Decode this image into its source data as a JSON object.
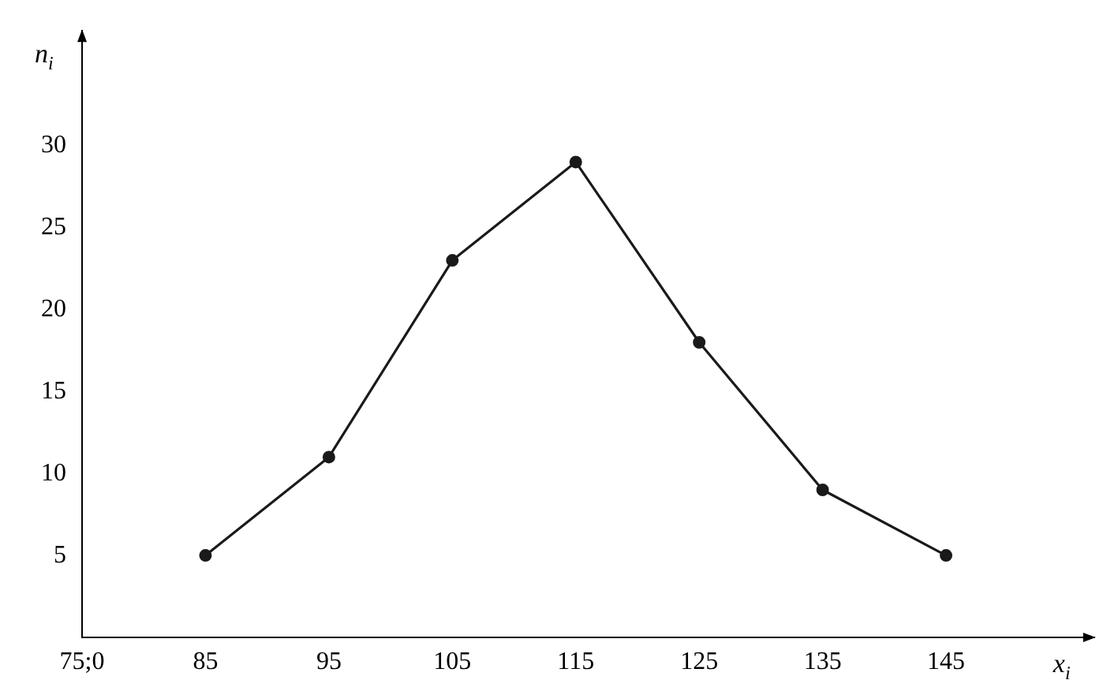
{
  "chart_data": {
    "type": "line",
    "xlabel": "x$_{i}$",
    "ylabel": "n$_{i}$",
    "x": [
      85,
      95,
      105,
      115,
      125,
      135,
      145
    ],
    "series": [
      {
        "color": "#1a1a1a",
        "values": [
          5,
          11,
          23,
          29,
          18,
          9,
          5
        ]
      }
    ],
    "xlim": [
      75,
      157
    ],
    "ylim": [
      0,
      37
    ],
    "xticks": [
      {
        "value": 75,
        "label": "75;0"
      },
      85,
      95,
      105,
      115,
      125,
      135,
      145
    ],
    "yticks": [
      5,
      10,
      15,
      20,
      25,
      30
    ],
    "grid": false,
    "legend": false,
    "marker": "circle",
    "line_style": "solid"
  }
}
